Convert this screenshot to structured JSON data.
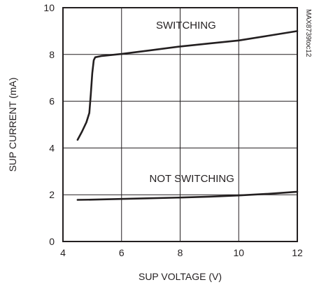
{
  "chart_data": {
    "type": "line",
    "xlabel": "SUP VOLTAGE (V)",
    "ylabel": "SUP CURRENT (mA)",
    "xlim": [
      4,
      12
    ],
    "ylim": [
      0,
      10
    ],
    "xticks": [
      4,
      6,
      8,
      10,
      12
    ],
    "yticks": [
      0,
      2,
      4,
      6,
      8,
      10
    ],
    "grid": true,
    "series": [
      {
        "name": "SWITCHING",
        "x": [
          4.5,
          4.65,
          4.8,
          4.9,
          4.95,
          5.0,
          5.05,
          5.1,
          5.3,
          6.0,
          7.0,
          8.0,
          9.0,
          10.0,
          11.0,
          12.0
        ],
        "y": [
          4.35,
          4.7,
          5.1,
          5.5,
          6.3,
          7.2,
          7.75,
          7.88,
          7.93,
          8.02,
          8.18,
          8.34,
          8.47,
          8.6,
          8.8,
          9.0
        ]
      },
      {
        "name": "NOT SWITCHING",
        "x": [
          4.5,
          5.0,
          6.0,
          7.0,
          8.0,
          9.0,
          10.0,
          11.0,
          12.0
        ],
        "y": [
          1.78,
          1.79,
          1.82,
          1.85,
          1.88,
          1.92,
          1.97,
          2.04,
          2.13
        ]
      }
    ],
    "annotations": [
      {
        "text": "SWITCHING",
        "x": 8.2,
        "y": 9.1
      },
      {
        "text": "NOT SWITCHING",
        "x": 8.4,
        "y": 2.55
      }
    ],
    "figure_id": "MAX8739toc12",
    "color": "#231f20"
  }
}
